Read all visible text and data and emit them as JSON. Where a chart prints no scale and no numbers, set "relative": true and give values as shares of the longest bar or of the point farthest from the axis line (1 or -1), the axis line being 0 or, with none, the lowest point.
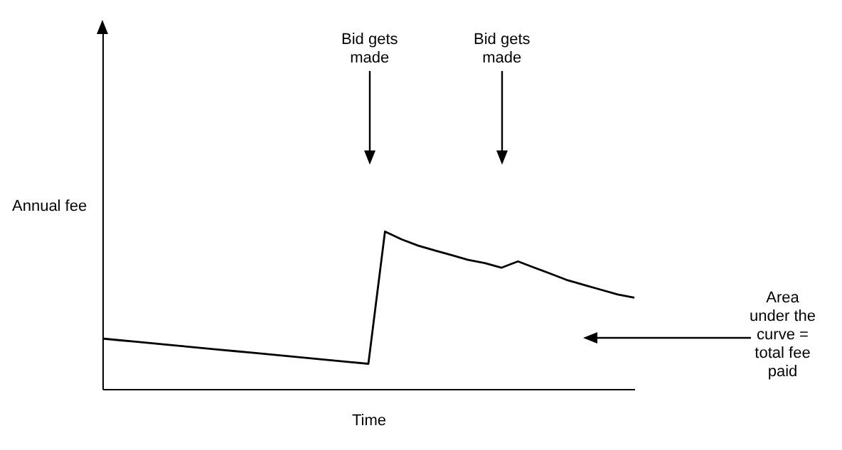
{
  "chart_data": {
    "type": "line",
    "relative": true,
    "xlabel": "Time",
    "ylabel": "Annual fee",
    "categories": [
      null,
      null,
      null,
      null,
      null,
      null,
      null,
      null,
      null,
      null,
      null,
      null,
      null,
      null,
      null,
      null,
      null,
      null,
      null,
      null,
      null,
      null,
      null,
      null,
      null,
      null,
      null,
      null,
      null,
      null,
      null,
      null,
      null
    ],
    "series": [
      {
        "color": "#000000",
        "values": [
          0.32,
          0.31,
          0.3,
          0.29,
          0.28,
          0.27,
          0.26,
          0.25,
          0.24,
          0.23,
          0.22,
          0.21,
          0.2,
          0.19,
          0.18,
          0.17,
          0.16,
          1.0,
          0.95,
          0.91,
          0.88,
          0.85,
          0.82,
          0.8,
          0.77,
          0.81,
          0.77,
          0.73,
          0.69,
          0.66,
          0.63,
          0.6,
          0.58
        ]
      }
    ],
    "annotations": [
      "Bid gets\nmade",
      "Bid gets\nmade",
      "Area\nunder the\ncurve =\ntotal fee\npaid"
    ]
  }
}
